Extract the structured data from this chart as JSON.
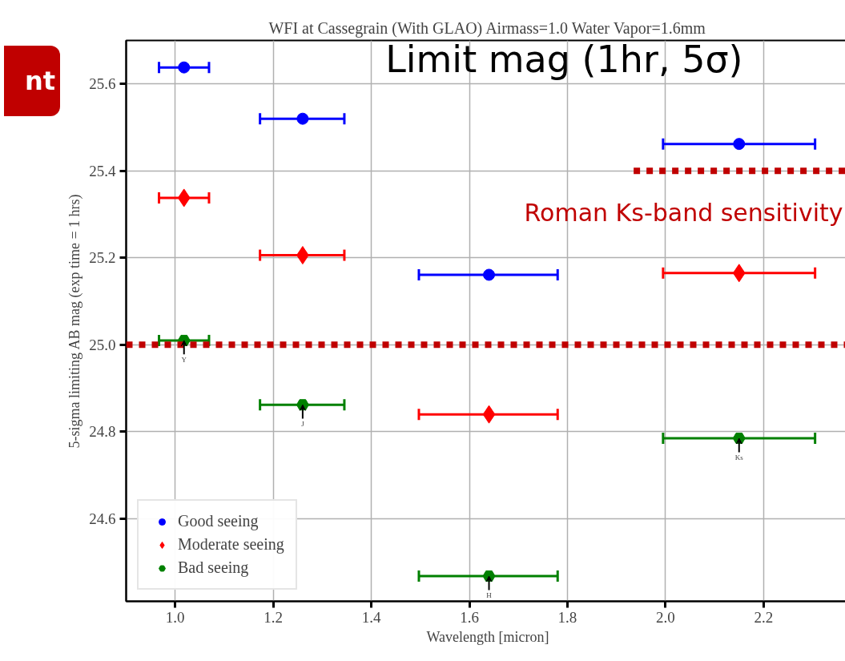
{
  "chart_data": {
    "type": "scatter",
    "title": "WFI at Cassegrain (With GLAO) Airmass=1.0 Water Vapor=1.6mm",
    "xlabel": "Wavelength [micron]",
    "ylabel": "5-sigma limiting AB mag (exp time = 1 hrs)",
    "x": [
      1.018,
      1.26,
      1.64,
      2.15
    ],
    "series": [
      {
        "name": "Good seeing",
        "color": "#0000ff",
        "marker": "circle",
        "values": [
          25.638,
          25.52,
          25.161,
          25.462
        ],
        "xerrors": [
          [
            0.967,
            1.069
          ],
          [
            1.173,
            1.345
          ],
          [
            1.497,
            1.78
          ],
          [
            1.995,
            2.305
          ]
        ]
      },
      {
        "name": "Moderate seeing",
        "color": "#ff0000",
        "marker": "diamond",
        "values": [
          25.338,
          25.206,
          24.84,
          25.165
        ],
        "xerrors": [
          [
            0.967,
            1.069
          ],
          [
            1.173,
            1.345
          ],
          [
            1.497,
            1.78
          ],
          [
            1.995,
            2.305
          ]
        ]
      },
      {
        "name": "Bad seeing",
        "color": "#008000",
        "values": [
          25.01,
          24.862,
          24.468,
          24.785
        ],
        "xerrors": [
          [
            0.967,
            1.069
          ],
          [
            1.173,
            1.345
          ],
          [
            1.497,
            1.78
          ],
          [
            1.995,
            2.305
          ]
        ]
      },
      {
        "name": "Roman Ks-band sensitivity",
        "type": "line",
        "color": "#c00000",
        "line_style": "dotted",
        "marker": "none",
        "x": [
          1.935,
          2.375
        ],
        "values": [
          25.4,
          25.4
        ]
      }
    ],
    "ref_lines": [
      {
        "axis": "y",
        "value": 25.0,
        "color": "#c00000",
        "line_style": "dotted"
      }
    ],
    "annotations": [
      "nt",
      "Limit mag (1hr, 5σ)",
      {
        "text": "Y",
        "x": 1.018,
        "y": 25.01
      },
      {
        "text": "J",
        "x": 1.26,
        "y": 24.862
      },
      {
        "text": "H",
        "x": 1.64,
        "y": 24.468
      },
      {
        "text": "Ks",
        "x": 2.15,
        "y": 24.785
      }
    ],
    "xlim": [
      0.9,
      2.375
    ],
    "ylim": [
      24.41,
      25.7
    ],
    "xticks": [
      {
        "value": 1.0,
        "label": "1.0"
      },
      1.2,
      1.4,
      1.6,
      1.8,
      {
        "value": 2.0,
        "label": "2.0"
      },
      2.2
    ],
    "yticks": [
      24.6,
      24.8,
      {
        "value": 25.0,
        "label": "25.0"
      },
      25.2,
      25.4,
      25.6
    ],
    "grid": true,
    "legend": "bottom left"
  }
}
